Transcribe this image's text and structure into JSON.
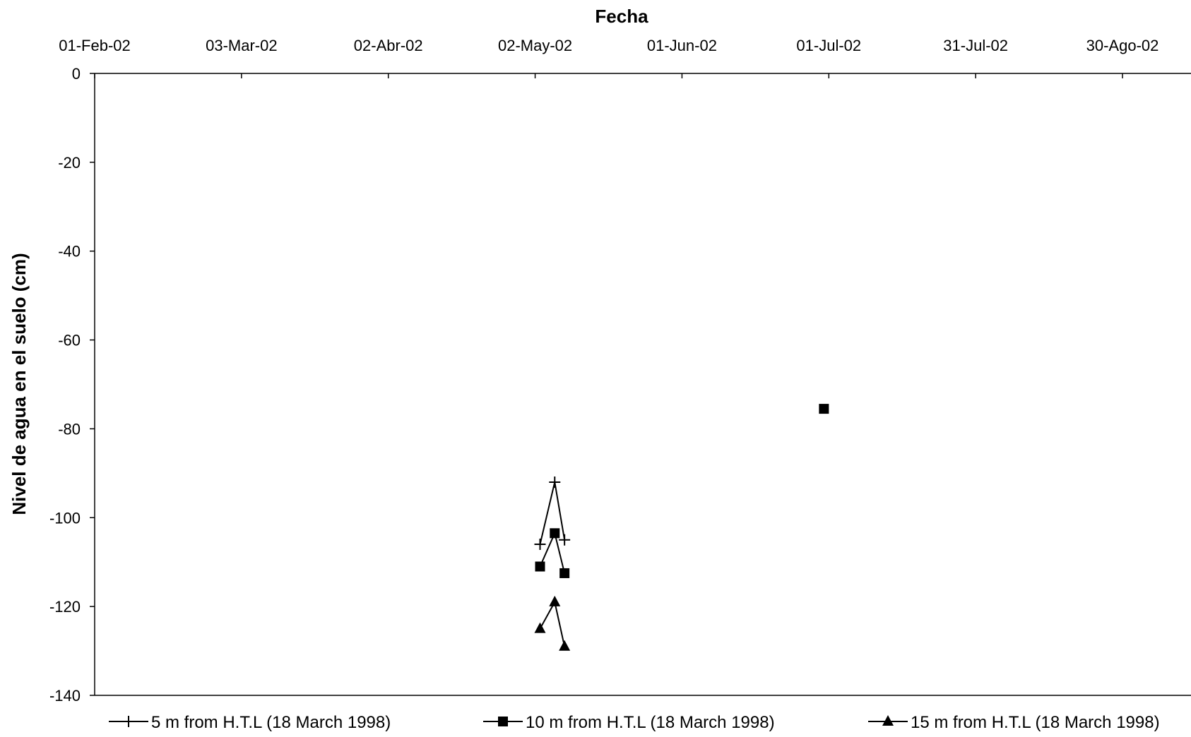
{
  "chart_data": {
    "type": "line",
    "title": "",
    "xlabel": "Fecha",
    "ylabel": "Nivel de agua en el suelo (cm)",
    "x_axis_position": "top",
    "x_ticks": [
      "01-Feb-02",
      "03-Mar-02",
      "02-Abr-02",
      "02-May-02",
      "01-Jun-02",
      "01-Jul-02",
      "31-Jul-02",
      "30-Ago-02"
    ],
    "xlim": [
      "2002-02-01",
      "2002-09-13"
    ],
    "ylim": [
      -140,
      0
    ],
    "y_ticks": [
      0,
      -20,
      -40,
      -60,
      -80,
      -100,
      -120,
      -140
    ],
    "grid": false,
    "legend_position": "bottom",
    "colors": {
      "series": "#000000"
    },
    "series": [
      {
        "name": "5 m from H.T.L (18 March 1998)",
        "marker": "plus",
        "points": [
          {
            "x": "2002-05-03",
            "y": -106
          },
          {
            "x": "2002-05-06",
            "y": -92
          },
          {
            "x": "2002-05-08",
            "y": -105
          }
        ]
      },
      {
        "name": "10 m from H.T.L (18 March 1998)",
        "marker": "square",
        "points": [
          {
            "x": "2002-05-03",
            "y": -111
          },
          {
            "x": "2002-05-06",
            "y": -103.5
          },
          {
            "x": "2002-05-08",
            "y": -112.5
          },
          {
            "x": "2002-06-30",
            "y": -75.5
          }
        ]
      },
      {
        "name": "15 m from H.T.L (18 March 1998)",
        "marker": "triangle",
        "points": [
          {
            "x": "2002-05-03",
            "y": -125
          },
          {
            "x": "2002-05-06",
            "y": -119
          },
          {
            "x": "2002-05-08",
            "y": -129
          }
        ]
      }
    ]
  }
}
